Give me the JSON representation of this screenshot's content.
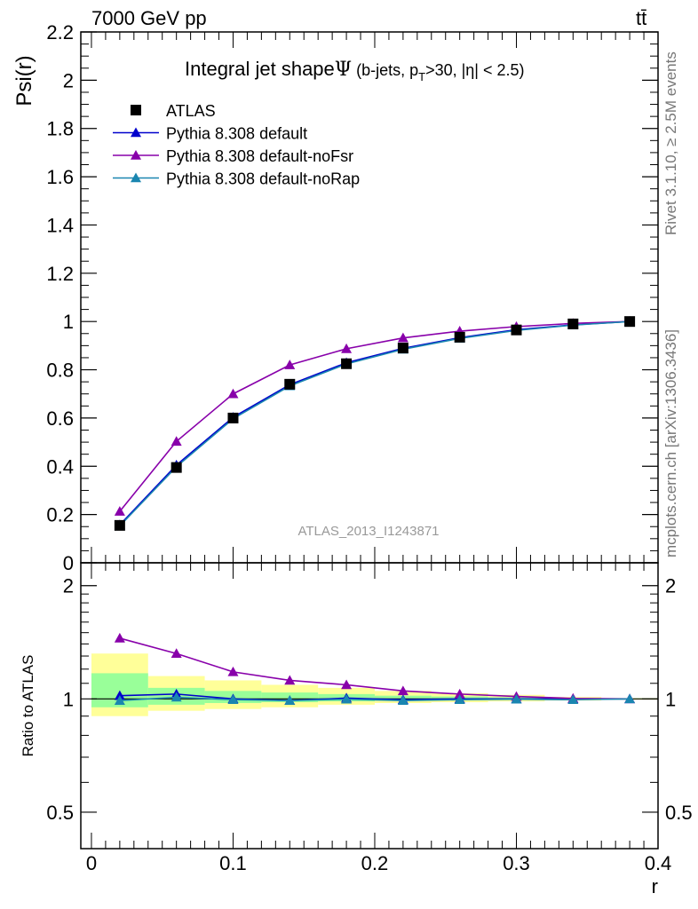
{
  "header": {
    "energy_label": "7000 GeV pp",
    "process_label": "tt̄"
  },
  "side_labels": {
    "rivet": "Rivet 3.1.10, ≥ 2.5M events",
    "source": "mcplots.cern.ch [arXiv:1306.3436]"
  },
  "chart_data": [
    {
      "type": "line",
      "title": "Integral jet shape",
      "title_symbol": "Ψ",
      "title_cond_1": "(b-jets, p",
      "title_cond_sub": "T",
      "title_cond_2": ">30, |η| < 2.5)",
      "analysis_label": "ATLAS_2013_I1243871",
      "ylabel": "Psi(r)",
      "xlim": [
        -0.0075,
        0.4
      ],
      "ylim": [
        0,
        2.2
      ],
      "yticks": [
        "0",
        "0.2",
        "0.4",
        "0.6",
        "0.8",
        "1",
        "1.2",
        "1.4",
        "1.6",
        "1.8",
        "2",
        "2.2"
      ],
      "x": [
        0.02,
        0.06,
        0.1,
        0.14,
        0.18,
        0.22,
        0.26,
        0.3,
        0.34,
        0.38
      ],
      "legend_position": "top-left",
      "series": [
        {
          "name": "ATLAS",
          "color": "#000000",
          "marker": "square",
          "values": [
            0.155,
            0.395,
            0.6,
            0.74,
            0.825,
            0.89,
            0.935,
            0.965,
            0.99,
            1.0
          ]
        },
        {
          "name": "Pythia 8.308 default",
          "color": "#0000cc",
          "marker": "triangle",
          "values": [
            0.157,
            0.405,
            0.603,
            0.738,
            0.829,
            0.889,
            0.933,
            0.966,
            0.986,
            1.0
          ]
        },
        {
          "name": "Pythia 8.308 default-noFsr",
          "color": "#8800aa",
          "marker": "triangle",
          "values": [
            0.213,
            0.503,
            0.7,
            0.82,
            0.887,
            0.932,
            0.96,
            0.979,
            0.992,
            1.0
          ]
        },
        {
          "name": "Pythia 8.308 default-noRap",
          "color": "#1a86b0",
          "marker": "triangle",
          "values": [
            0.153,
            0.398,
            0.597,
            0.733,
            0.824,
            0.885,
            0.93,
            0.963,
            0.985,
            1.0
          ]
        }
      ]
    },
    {
      "type": "line",
      "ylabel": "Ratio to ATLAS",
      "xlabel": "r",
      "xlim": [
        -0.0075,
        0.4
      ],
      "ylim": [
        0.4,
        2.3
      ],
      "yscale": "log",
      "yticks": [
        "0.5",
        "1",
        "2"
      ],
      "xticks": [
        "0",
        "0.1",
        "0.2",
        "0.3",
        "0.4"
      ],
      "x": [
        0.02,
        0.06,
        0.1,
        0.14,
        0.18,
        0.22,
        0.26,
        0.3,
        0.34,
        0.38
      ],
      "bins": [
        [
          0.0,
          0.04
        ],
        [
          0.04,
          0.08
        ],
        [
          0.08,
          0.12
        ],
        [
          0.12,
          0.16
        ],
        [
          0.16,
          0.2
        ],
        [
          0.2,
          0.24
        ],
        [
          0.24,
          0.28
        ],
        [
          0.28,
          0.32
        ],
        [
          0.32,
          0.36
        ],
        [
          0.36,
          0.4
        ]
      ],
      "bands": [
        {
          "color": "#ffff99",
          "lo": [
            0.9,
            0.93,
            0.94,
            0.95,
            0.965,
            0.975,
            0.98,
            0.985,
            0.99,
            0.995
          ],
          "hi": [
            1.32,
            1.15,
            1.12,
            1.09,
            1.07,
            1.05,
            1.035,
            1.025,
            1.012,
            1.005
          ]
        },
        {
          "color": "#99ff99",
          "lo": [
            0.95,
            0.965,
            0.975,
            0.98,
            0.985,
            0.99,
            0.993,
            0.995,
            0.997,
            0.998
          ],
          "hi": [
            1.17,
            1.07,
            1.05,
            1.04,
            1.03,
            1.02,
            1.015,
            1.01,
            1.006,
            1.003
          ]
        }
      ],
      "series": [
        {
          "name": "Pythia 8.308 default",
          "color": "#0000cc",
          "values": [
            1.02,
            1.03,
            1.0,
            0.99,
            1.005,
            0.995,
            1.0,
            1.0,
            1.0,
            1.0
          ]
        },
        {
          "name": "Pythia 8.308 default-noFsr",
          "color": "#8800aa",
          "values": [
            1.45,
            1.32,
            1.18,
            1.12,
            1.09,
            1.05,
            1.03,
            1.015,
            1.003,
            1.0
          ]
        },
        {
          "name": "Pythia 8.308 default-noRap",
          "color": "#1a86b0",
          "values": [
            0.99,
            1.01,
            0.995,
            0.99,
            0.998,
            0.99,
            0.995,
            0.998,
            0.995,
            1.0
          ]
        }
      ]
    }
  ]
}
